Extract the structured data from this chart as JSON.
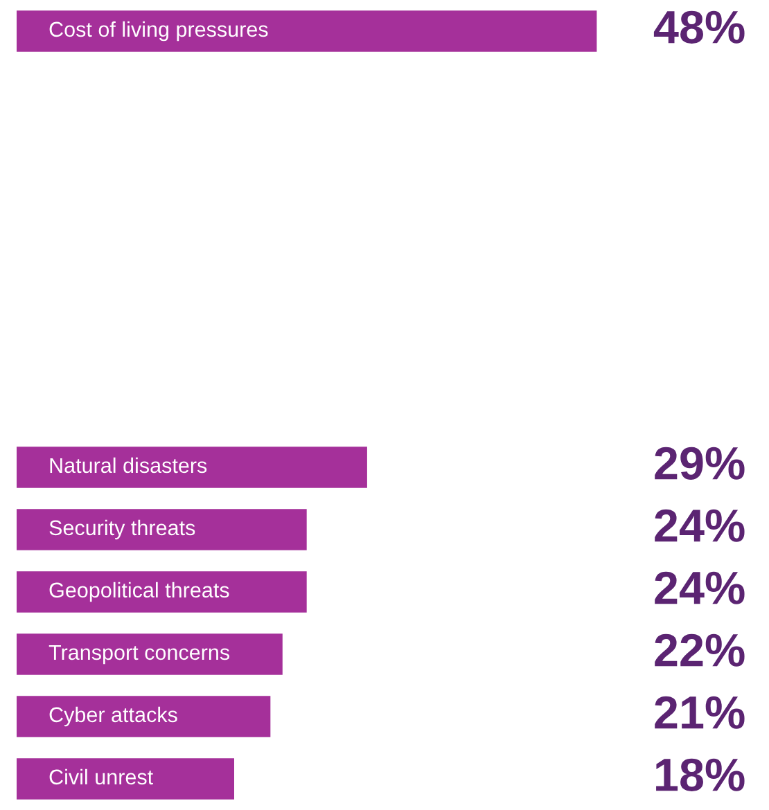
{
  "chart_data": {
    "type": "bar",
    "orientation": "horizontal",
    "categories": [
      "Cost of living pressures",
      null,
      null,
      null,
      null,
      null,
      null,
      "Natural disasters",
      "Security threats",
      "Geopolitical threats",
      "Transport concerns",
      "Cyber attacks",
      "Civil unrest"
    ],
    "values": [
      48,
      null,
      null,
      null,
      null,
      null,
      null,
      29,
      24,
      24,
      22,
      21,
      18
    ],
    "value_labels": [
      "48%",
      null,
      null,
      null,
      null,
      null,
      null,
      "29%",
      "24%",
      "24%",
      "22%",
      "21%",
      "18%"
    ],
    "color": "#a5309a"
  }
}
